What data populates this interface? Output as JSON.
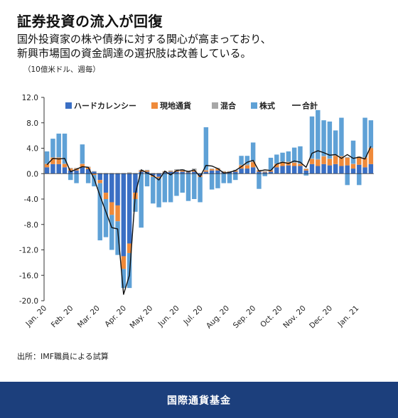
{
  "header": {
    "title": "証券投資の流入が回復",
    "subtitle_line1": "国外投資家の株や債券に対する関心が高まっており、",
    "subtitle_line2": "新興市場国の資金調達の選択肢は改善している。",
    "unit": "（10億米ドル、週毎）"
  },
  "source": "出所：IMF職員による試算",
  "footer": {
    "org": "国際通貨基金"
  },
  "colors": {
    "hard": "#3a6fc4",
    "local": "#ef8a3a",
    "mixed": "#a7a7a7",
    "equity": "#5fa1d6",
    "total": "#111111",
    "footer_bg": "#1c3f7c"
  },
  "chart_data": {
    "type": "bar",
    "stacked": true,
    "ylim": [
      -20,
      12
    ],
    "yticks": [
      12.0,
      8.0,
      4.0,
      0.0,
      -4.0,
      -8.0,
      -12.0,
      -16.0,
      -20.0
    ],
    "ytick_labels": [
      "12.0",
      "8.0",
      "4.0",
      "0.0",
      "-4.0",
      "-8.0",
      "-12.0",
      "-16.0",
      "-20.0"
    ],
    "xtick_labels": [
      "Jan. 20",
      "Feb. 20",
      "Mar. 20",
      "Apr. 20",
      "May. 20",
      "Jun. 20",
      "Jul. 20",
      "Aug. 20",
      "Sep. 20",
      "Oct. 20",
      "Nov. 20",
      "Dec. 20",
      "Jan. 21"
    ],
    "xtick_weeks": [
      0,
      4.5,
      9,
      13.5,
      18,
      22.5,
      26.5,
      31,
      35.5,
      40,
      44,
      48.5,
      53
    ],
    "legend": [
      {
        "key": "hard",
        "label": "ハードカレンシー",
        "kind": "box"
      },
      {
        "key": "local",
        "label": "現地通貨",
        "kind": "box"
      },
      {
        "key": "mixed",
        "label": "混合",
        "kind": "box"
      },
      {
        "key": "equity",
        "label": "株式",
        "kind": "box"
      },
      {
        "key": "total",
        "label": "合計",
        "kind": "line"
      }
    ],
    "legend_position": "top",
    "grid": false,
    "series": [
      {
        "key": "hard",
        "name": "ハードカレンシー",
        "values": [
          1.0,
          1.5,
          1.5,
          1.0,
          0.5,
          0.5,
          1.0,
          0.7,
          0.3,
          -1.0,
          -3.0,
          -4.5,
          -5.0,
          -13.0,
          -11.0,
          -3.0,
          0.3,
          0.3,
          -0.3,
          -0.5,
          0.2,
          0.3,
          0.3,
          0.3,
          0.2,
          0.3,
          -0.3,
          0.3,
          0.5,
          0.5,
          0.2,
          0.2,
          0.3,
          0.8,
          0.8,
          1.0,
          0.3,
          0.2,
          0.3,
          1.0,
          1.2,
          1.3,
          1.2,
          1.2,
          0.5,
          1.5,
          1.2,
          1.5,
          1.3,
          1.5,
          1.2,
          1.3,
          0.8,
          1.4,
          1.0,
          1.5
        ]
      },
      {
        "key": "local",
        "name": "現地通貨",
        "values": [
          0.5,
          1.0,
          1.0,
          0.5,
          0.3,
          0.3,
          0.5,
          0.3,
          -0.2,
          -0.5,
          -1.0,
          -2.0,
          -2.5,
          -2.0,
          -1.5,
          -1.0,
          0.2,
          0.2,
          -0.2,
          -0.2,
          0.1,
          0.1,
          0.2,
          0.2,
          0.1,
          0.2,
          -0.2,
          0.2,
          0.2,
          0.3,
          0.1,
          0.1,
          0.2,
          0.5,
          0.5,
          0.8,
          0.2,
          0.1,
          0.2,
          0.5,
          0.6,
          0.5,
          0.5,
          0.3,
          0.2,
          0.8,
          1.0,
          1.2,
          1.0,
          1.3,
          1.5,
          1.2,
          0.7,
          1.2,
          1.5,
          2.5
        ]
      },
      {
        "key": "mixed",
        "name": "混合",
        "values": [
          0.1,
          0.1,
          0.1,
          0.1,
          0.1,
          0.1,
          0.1,
          0.1,
          0.1,
          0.1,
          0.1,
          0.1,
          0.1,
          0.1,
          0.2,
          0.1,
          0.1,
          0.1,
          0.1,
          0.1,
          0.1,
          0.1,
          0.2,
          0.2,
          0.2,
          0.3,
          0.1,
          0.1,
          0.1,
          0.1,
          0.1,
          0.1,
          0.1,
          0.1,
          0.2,
          0.2,
          0.1,
          0.1,
          0.1,
          0.1,
          0.1,
          0.1,
          0.1,
          0.1,
          0.1,
          0.1,
          0.1,
          0.1,
          0.1,
          0.1,
          0.1,
          0.1,
          0.1,
          0.1,
          0.1,
          0.1
        ]
      },
      {
        "key": "equity",
        "name": "株式",
        "values": [
          1.9,
          2.9,
          3.7,
          4.7,
          -1.0,
          -1.5,
          3.0,
          -1.5,
          -1.8,
          -9.0,
          -6.0,
          -5.5,
          -5.3,
          -3.0,
          -5.5,
          -2.0,
          -8.5,
          -2.0,
          -4.2,
          -4.6,
          -4.5,
          -4.5,
          -3.5,
          -3.0,
          -4.3,
          -4.0,
          -4.0,
          6.7,
          -2.5,
          -2.3,
          -1.5,
          -1.5,
          -1.0,
          1.4,
          1.3,
          2.9,
          -2.4,
          -0.4,
          1.9,
          1.4,
          1.4,
          1.6,
          2.3,
          2.7,
          -0.3,
          6.6,
          7.7,
          5.6,
          5.8,
          3.9,
          6.0,
          -1.8,
          3.6,
          -1.8,
          6.2,
          4.3
        ]
      },
      {
        "key": "total",
        "name": "合計",
        "kind": "line",
        "values": [
          1.4,
          2.4,
          2.3,
          2.4,
          0.3,
          0.7,
          1.1,
          1.0,
          -0.8,
          -3.5,
          -6.0,
          -8.5,
          -8.7,
          -19.0,
          -16.0,
          -3.2,
          0.6,
          0.1,
          -0.3,
          -1.0,
          0.4,
          -0.2,
          0.5,
          0.6,
          0.3,
          0.6,
          -0.5,
          1.3,
          1.2,
          0.8,
          0.1,
          0.2,
          0.5,
          1.1,
          1.8,
          2.1,
          0.4,
          0.6,
          0.5,
          1.5,
          1.8,
          1.6,
          2.0,
          1.8,
          1.0,
          3.2,
          3.6,
          3.3,
          2.9,
          3.0,
          2.4,
          3.0,
          2.4,
          2.6,
          2.3,
          4.3
        ]
      }
    ]
  }
}
